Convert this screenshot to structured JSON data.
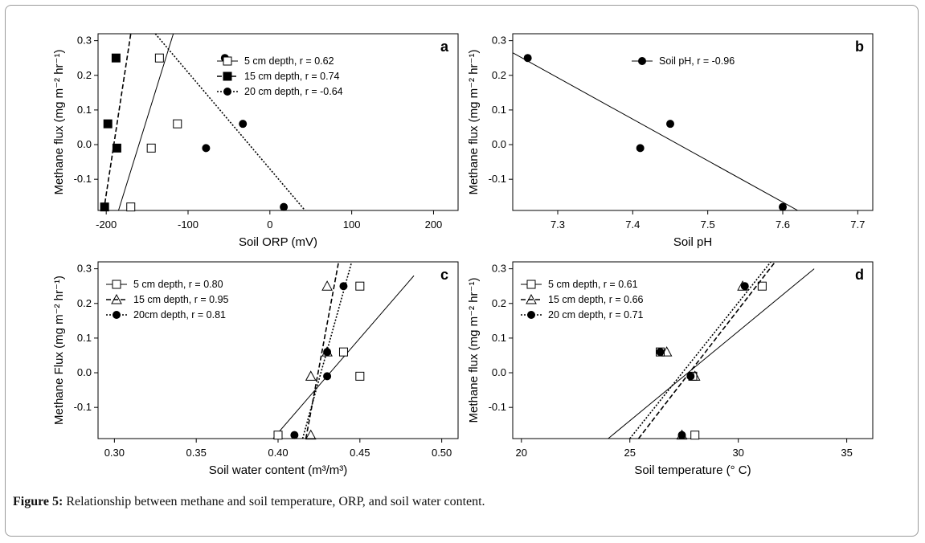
{
  "caption": {
    "label": "Figure 5:",
    "text": " Relationship between methane and soil temperature, ORP, and soil water content."
  },
  "chart_data": [
    {
      "type": "scatter",
      "panel_letter": "a",
      "xlabel": "Soil ORP (mV)",
      "ylabel": "Methane flux (mg m⁻² hr⁻¹)",
      "xlim": [
        -210,
        230
      ],
      "ylim": [
        -0.19,
        0.32
      ],
      "xticks": [
        -200,
        -100,
        0,
        100,
        200
      ],
      "yticks": [
        -0.1,
        0.0,
        0.1,
        0.2,
        0.3
      ],
      "ytick_labels": [
        "-0.1",
        "0.0",
        "0.1",
        "0.2",
        "0.3"
      ],
      "legend_position": "top-center",
      "series": [
        {
          "name": "5 cm depth, r = 0.62",
          "marker": "square-open",
          "line": "solid",
          "x": [
            -135,
            -113,
            -145,
            -170
          ],
          "y": [
            0.25,
            0.06,
            -0.01,
            -0.18
          ],
          "fit": [
            [
              -185,
              -0.19
            ],
            [
              -118,
              0.32
            ]
          ]
        },
        {
          "name": "15 cm depth, r = 0.74",
          "marker": "square-filled",
          "line": "dashed",
          "x": [
            -188,
            -198,
            -187,
            -202
          ],
          "y": [
            0.25,
            0.06,
            -0.01,
            -0.18
          ],
          "fit": [
            [
              -203,
              -0.19
            ],
            [
              -170,
              0.32
            ]
          ]
        },
        {
          "name": "20 cm depth, r = -0.64",
          "marker": "circle-filled",
          "line": "dotted",
          "x": [
            -55,
            -33,
            -78,
            17
          ],
          "y": [
            0.25,
            0.06,
            -0.01,
            -0.18
          ],
          "fit": [
            [
              -140,
              0.32
            ],
            [
              43,
              -0.19
            ]
          ]
        }
      ]
    },
    {
      "type": "scatter",
      "panel_letter": "b",
      "xlabel": "Soil pH",
      "ylabel": "Methane flux (mg m⁻² hr⁻¹)",
      "xlim": [
        7.24,
        7.72
      ],
      "ylim": [
        -0.19,
        0.32
      ],
      "xticks": [
        7.3,
        7.4,
        7.5,
        7.6,
        7.7
      ],
      "xtick_labels": [
        "7.3",
        "7.4",
        "7.5",
        "7.6",
        "7.7"
      ],
      "yticks": [
        -0.1,
        0.0,
        0.1,
        0.2,
        0.3
      ],
      "ytick_labels": [
        "-0.1",
        "0.0",
        "0.1",
        "0.2",
        "0.3"
      ],
      "legend_position": "top-center",
      "series": [
        {
          "name": "Soil pH, r = -0.96",
          "marker": "circle-filled",
          "line": "solid",
          "x": [
            7.26,
            7.45,
            7.41,
            7.6
          ],
          "y": [
            0.25,
            0.06,
            -0.01,
            -0.18
          ],
          "fit": [
            [
              7.24,
              0.265
            ],
            [
              7.62,
              -0.19
            ]
          ]
        }
      ]
    },
    {
      "type": "scatter",
      "panel_letter": "c",
      "xlabel": "Soil water content (m³/m³)",
      "ylabel": "Methane Flux (mg m⁻² hr⁻¹)",
      "xlim": [
        0.29,
        0.51
      ],
      "ylim": [
        -0.19,
        0.32
      ],
      "xticks": [
        0.3,
        0.35,
        0.4,
        0.45,
        0.5
      ],
      "xtick_labels": [
        "0.30",
        "0.35",
        "0.40",
        "0.45",
        "0.50"
      ],
      "yticks": [
        -0.1,
        0.0,
        0.1,
        0.2,
        0.3
      ],
      "ytick_labels": [
        "-0.1",
        "0.0",
        "0.1",
        "0.2",
        "0.3"
      ],
      "legend_position": "top-left",
      "series": [
        {
          "name": "5 cm depth, r = 0.80",
          "marker": "square-open",
          "line": "solid",
          "x": [
            0.45,
            0.44,
            0.45,
            0.4
          ],
          "y": [
            0.25,
            0.06,
            -0.01,
            -0.18
          ],
          "fit": [
            [
              0.397,
              -0.19
            ],
            [
              0.483,
              0.28
            ]
          ]
        },
        {
          "name": "15 cm depth, r = 0.95",
          "marker": "triangle-open",
          "line": "dashed",
          "x": [
            0.43,
            0.43,
            0.42,
            0.42
          ],
          "y": [
            0.25,
            0.06,
            -0.01,
            -0.18
          ],
          "fit": [
            [
              0.417,
              -0.19
            ],
            [
              0.437,
              0.32
            ]
          ]
        },
        {
          "name": "20cm depth, r = 0.81",
          "marker": "circle-filled",
          "line": "dotted",
          "x": [
            0.44,
            0.43,
            0.43,
            0.41
          ],
          "y": [
            0.25,
            0.06,
            -0.01,
            -0.18
          ],
          "fit": [
            [
              0.415,
              -0.19
            ],
            [
              0.445,
              0.32
            ]
          ]
        }
      ]
    },
    {
      "type": "scatter",
      "panel_letter": "d",
      "xlabel": "Soil temperature (° C)",
      "ylabel": "Methane flux (mg m⁻² hr⁻¹)",
      "xlim": [
        19.6,
        36.2
      ],
      "ylim": [
        -0.19,
        0.32
      ],
      "xticks": [
        20,
        25,
        30,
        35
      ],
      "yticks": [
        -0.1,
        0.0,
        0.1,
        0.2,
        0.3
      ],
      "ytick_labels": [
        "-0.1",
        "0.0",
        "0.1",
        "0.2",
        "0.3"
      ],
      "legend_position": "top-left",
      "series": [
        {
          "name": "5 cm depth, r = 0.61",
          "marker": "square-open",
          "line": "solid",
          "x": [
            31.1,
            26.4,
            27.9,
            28.0
          ],
          "y": [
            0.25,
            0.06,
            -0.01,
            -0.18
          ],
          "fit": [
            [
              24.0,
              -0.19
            ],
            [
              33.5,
              0.3
            ]
          ]
        },
        {
          "name": "15 cm depth, r = 0.66",
          "marker": "triangle-open",
          "line": "dashed",
          "x": [
            30.2,
            26.7,
            28.0,
            27.4
          ],
          "y": [
            0.25,
            0.06,
            -0.01,
            -0.18
          ],
          "fit": [
            [
              25.4,
              -0.19
            ],
            [
              31.7,
              0.32
            ]
          ]
        },
        {
          "name": "20 cm depth, r = 0.71",
          "marker": "circle-filled",
          "line": "dotted",
          "x": [
            30.3,
            26.4,
            27.8,
            27.4
          ],
          "y": [
            0.25,
            0.06,
            -0.01,
            -0.18
          ],
          "fit": [
            [
              25.0,
              -0.19
            ],
            [
              31.5,
              0.32
            ]
          ]
        }
      ]
    }
  ]
}
